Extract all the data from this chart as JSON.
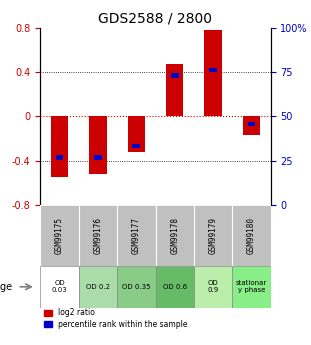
{
  "title": "GDS2588 / 2800",
  "samples": [
    "GSM99175",
    "GSM99176",
    "GSM99177",
    "GSM99178",
    "GSM99179",
    "GSM99180"
  ],
  "log2_ratio": [
    -0.55,
    -0.52,
    -0.32,
    0.47,
    0.78,
    -0.17
  ],
  "percentile": [
    -0.37,
    -0.37,
    -0.27,
    0.37,
    0.42,
    -0.07
  ],
  "ylim": [
    -0.8,
    0.8
  ],
  "yticks_left": [
    -0.8,
    -0.4,
    0,
    0.4,
    0.8
  ],
  "yticks_right": [
    0,
    25,
    50,
    75,
    100
  ],
  "yticks_right_labels": [
    "0",
    "25",
    "50",
    "75",
    "100%"
  ],
  "bar_color_red": "#cc0000",
  "bar_color_blue": "#0000cc",
  "zero_line_color": "#cc0000",
  "sample_bg_color": "#c0c0c0",
  "age_labels": [
    "OD\n0.03",
    "OD 0.2",
    "OD 0.35",
    "OD 0.6",
    "OD\n0.9",
    "stationar\ny phase"
  ],
  "age_bg_colors": [
    "#ffffff",
    "#aaddaa",
    "#88cc88",
    "#66bb66",
    "#bbeeaa",
    "#88ee88"
  ],
  "legend_red": "log2 ratio",
  "legend_blue": "percentile rank within the sample"
}
